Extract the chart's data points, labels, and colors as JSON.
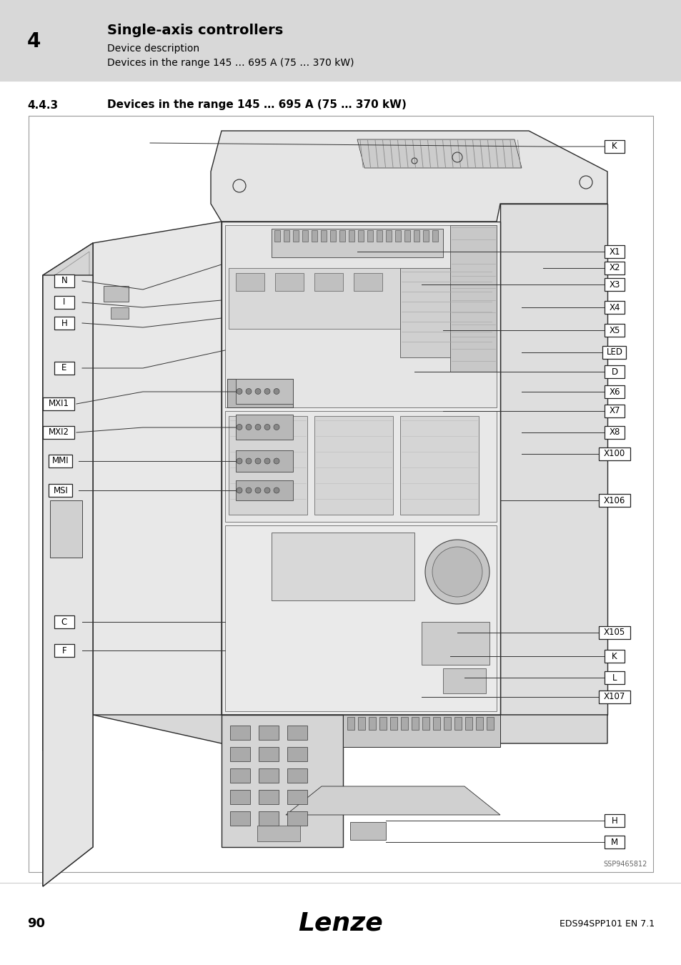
{
  "page_bg": "#e8e8e8",
  "header_bg": "#d8d8d8",
  "header_number": "4",
  "header_title": "Single-axis controllers",
  "header_sub1": "Device description",
  "header_sub2": "Devices in the range 145 … 695 A (75 … 370 kW)",
  "section_number": "4.4.3",
  "section_title": "Devices in the range 145 … 695 A (75 … 370 kW)",
  "footer_page": "90",
  "footer_brand": "Lenze",
  "footer_doc": "EDS94SPP101 EN 7.1",
  "image_ref_code": "SSP9465812"
}
